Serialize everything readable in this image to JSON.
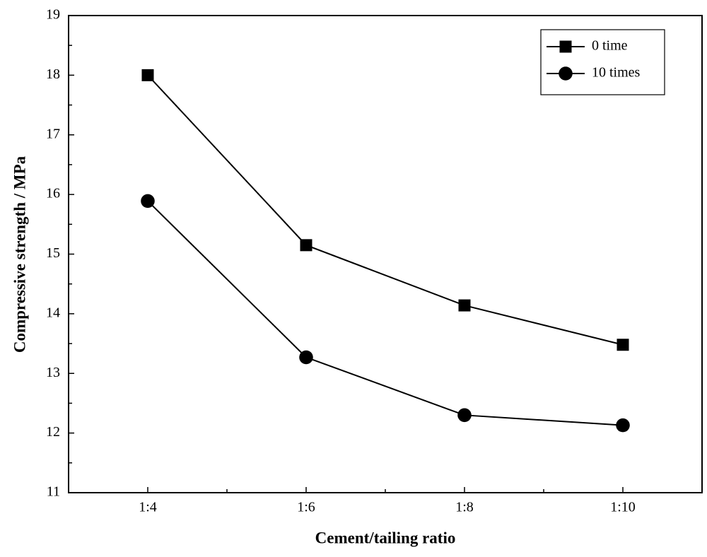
{
  "chart_data": {
    "type": "line",
    "x_label": "Cement/tailing ratio",
    "y_label": "Compressive strength / MPa",
    "categories": [
      "1:4",
      "1:6",
      "1:8",
      "1:10"
    ],
    "series": [
      {
        "name": "0 time",
        "color": "#000000",
        "marker": "square",
        "values": [
          18.0,
          15.15,
          14.14,
          13.48
        ]
      },
      {
        "name": "10 times",
        "color": "#000000",
        "marker": "circle",
        "values": [
          15.89,
          13.27,
          12.3,
          12.13
        ]
      }
    ],
    "ylim": [
      11,
      19
    ],
    "yticks": [
      11,
      12,
      13,
      14,
      15,
      16,
      17,
      18,
      19
    ],
    "legend": "upper right"
  }
}
